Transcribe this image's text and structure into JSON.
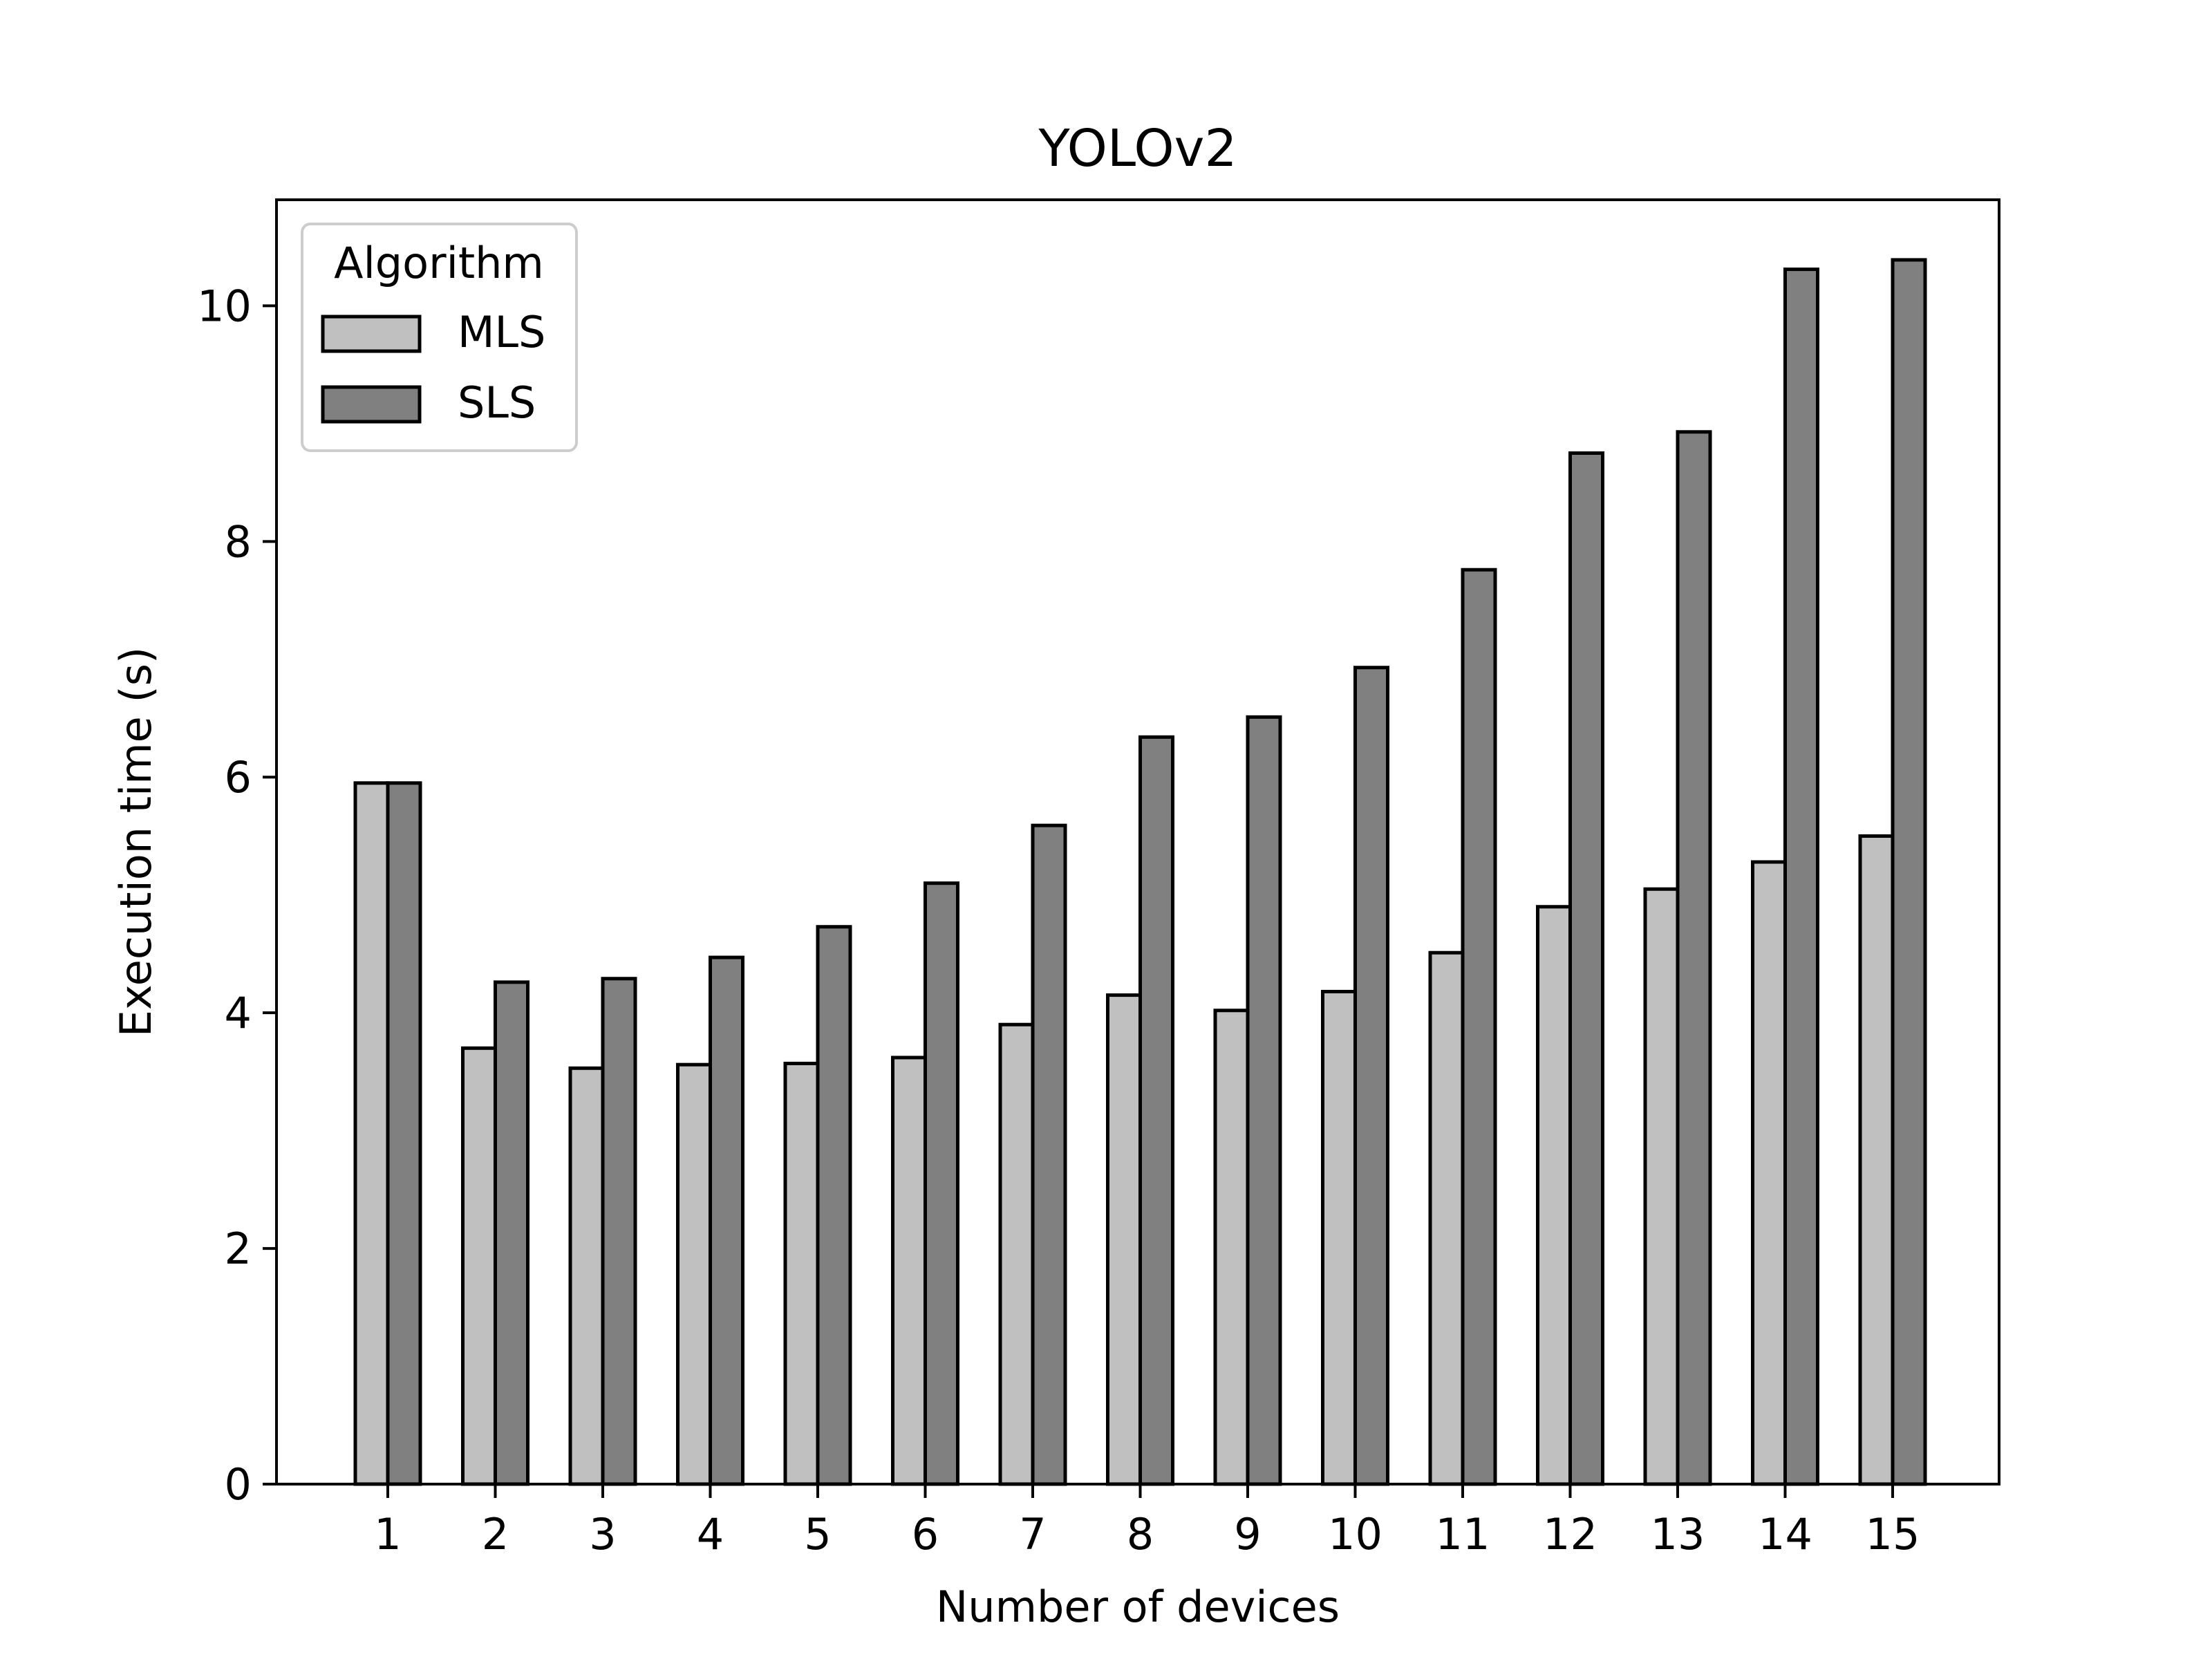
{
  "chart_data": {
    "type": "bar",
    "title": "YOLOv2",
    "xlabel": "Number of devices",
    "ylabel": "Execution time (s)",
    "categories": [
      "1",
      "2",
      "3",
      "4",
      "5",
      "6",
      "7",
      "8",
      "9",
      "10",
      "11",
      "12",
      "13",
      "14",
      "15"
    ],
    "ylim": [
      0,
      10.9
    ],
    "yticks": [
      0,
      2,
      4,
      6,
      8,
      10
    ],
    "grid": false,
    "legend": {
      "title": "Algorithm",
      "placement": "top-left"
    },
    "series": [
      {
        "name": "MLS",
        "color": "#c0c0c0",
        "values": [
          5.95,
          3.7,
          3.53,
          3.56,
          3.57,
          3.62,
          3.9,
          4.15,
          4.02,
          4.18,
          4.51,
          4.9,
          5.05,
          5.28,
          5.5
        ]
      },
      {
        "name": "SLS",
        "color": "#808080",
        "values": [
          5.95,
          4.26,
          4.29,
          4.47,
          4.73,
          5.1,
          5.59,
          6.34,
          6.51,
          6.93,
          7.76,
          8.75,
          8.93,
          10.31,
          10.39
        ]
      }
    ]
  }
}
